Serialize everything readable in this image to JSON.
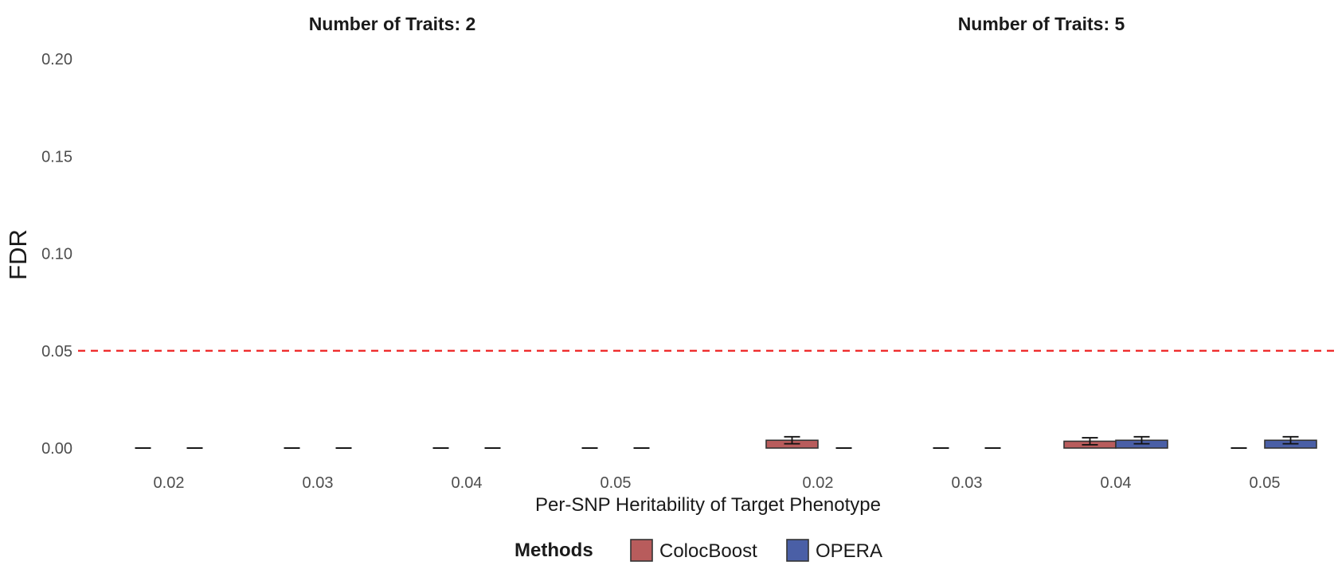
{
  "chart_data": {
    "type": "bar",
    "ylabel": "FDR",
    "xlabel": "Per-SNP Heritability of Target Phenotype",
    "ylim": [
      0,
      0.2
    ],
    "yticks": [
      "0.00",
      "0.05",
      "0.10",
      "0.15",
      "0.20"
    ],
    "ytick_values": [
      0,
      0.05,
      0.1,
      0.15,
      0.2
    ],
    "reference_line": {
      "y": 0.05,
      "color": "#ee2222",
      "style": "dashed"
    },
    "grid": false,
    "legend": {
      "position": "bottom",
      "title": "Methods",
      "entries": [
        {
          "name": "ColocBoost",
          "color": "#b85c5c"
        },
        {
          "name": "OPERA",
          "color": "#4a5fa6"
        }
      ]
    },
    "panels": [
      {
        "title": "Number of Traits: 2",
        "categories": [
          "0.02",
          "0.03",
          "0.04",
          "0.05"
        ],
        "series": [
          {
            "name": "ColocBoost",
            "values": [
              0,
              0,
              0,
              0
            ],
            "err": [
              0,
              0,
              0,
              0
            ]
          },
          {
            "name": "OPERA",
            "values": [
              0,
              0,
              0,
              0
            ],
            "err": [
              0,
              0,
              0,
              0
            ]
          }
        ]
      },
      {
        "title": "Number of Traits: 5",
        "categories": [
          "0.02",
          "0.03",
          "0.04",
          "0.05"
        ],
        "series": [
          {
            "name": "ColocBoost",
            "values": [
              0.004,
              0,
              0.0035,
              0
            ],
            "err": [
              0.0018,
              0,
              0.0018,
              0
            ]
          },
          {
            "name": "OPERA",
            "values": [
              0,
              0,
              0.004,
              0.004
            ],
            "err": [
              0,
              0,
              0.0018,
              0.0018
            ]
          }
        ]
      }
    ]
  }
}
